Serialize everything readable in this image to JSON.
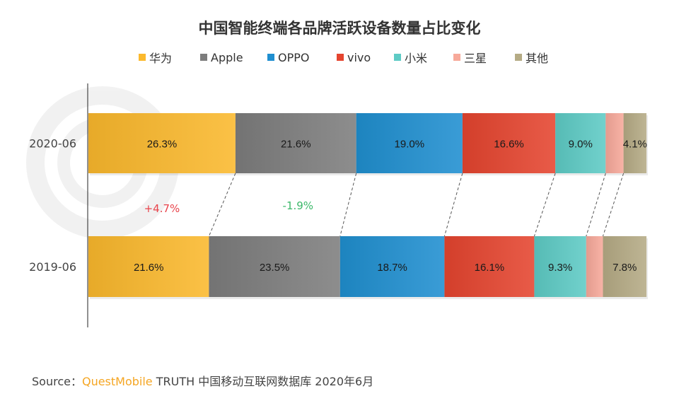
{
  "chart_data": {
    "type": "bar",
    "orientation": "horizontal",
    "stacked": true,
    "percent_stacked": true,
    "title": "中国智能终端各品牌活跃设备数量占比变化",
    "categories": [
      "2020-06",
      "2019-06"
    ],
    "series": [
      {
        "name": "华为",
        "color": "#fbb92d",
        "values": [
          26.3,
          21.6
        ],
        "labels": [
          "26.3%",
          "21.6%"
        ]
      },
      {
        "name": "Apple",
        "color": "#7d7d7d",
        "values": [
          21.6,
          23.5
        ],
        "labels": [
          "21.6%",
          "23.5%"
        ]
      },
      {
        "name": "OPPO",
        "color": "#1f8fd0",
        "values": [
          19.0,
          18.7
        ],
        "labels": [
          "19.0%",
          "18.7%"
        ]
      },
      {
        "name": "vivo",
        "color": "#e5452f",
        "values": [
          16.6,
          16.1
        ],
        "labels": [
          "16.6%",
          "16.1%"
        ]
      },
      {
        "name": "小米",
        "color": "#5ecbc5",
        "values": [
          9.0,
          9.3
        ],
        "labels": [
          "9.0%",
          "9.3%"
        ]
      },
      {
        "name": "三星",
        "color": "#f7a99a",
        "values": [
          3.2,
          3.0
        ],
        "labels": [
          "",
          ""
        ]
      },
      {
        "name": "其他",
        "color": "#b5ab85",
        "values": [
          4.1,
          7.8
        ],
        "labels": [
          "4.1%",
          "7.8%"
        ]
      }
    ],
    "annotations": [
      {
        "text": "+4.7%",
        "series": "华为",
        "color": "#e8434b"
      },
      {
        "text": "-1.9%",
        "series": "Apple",
        "color": "#3cb86a"
      }
    ],
    "legend_position": "top",
    "grid": false,
    "xlim": [
      0,
      100
    ]
  },
  "source": {
    "prefix": "Source：",
    "brand": "QuestMobile",
    "rest": " TRUTH 中国移动互联网数据库 2020年6月"
  }
}
